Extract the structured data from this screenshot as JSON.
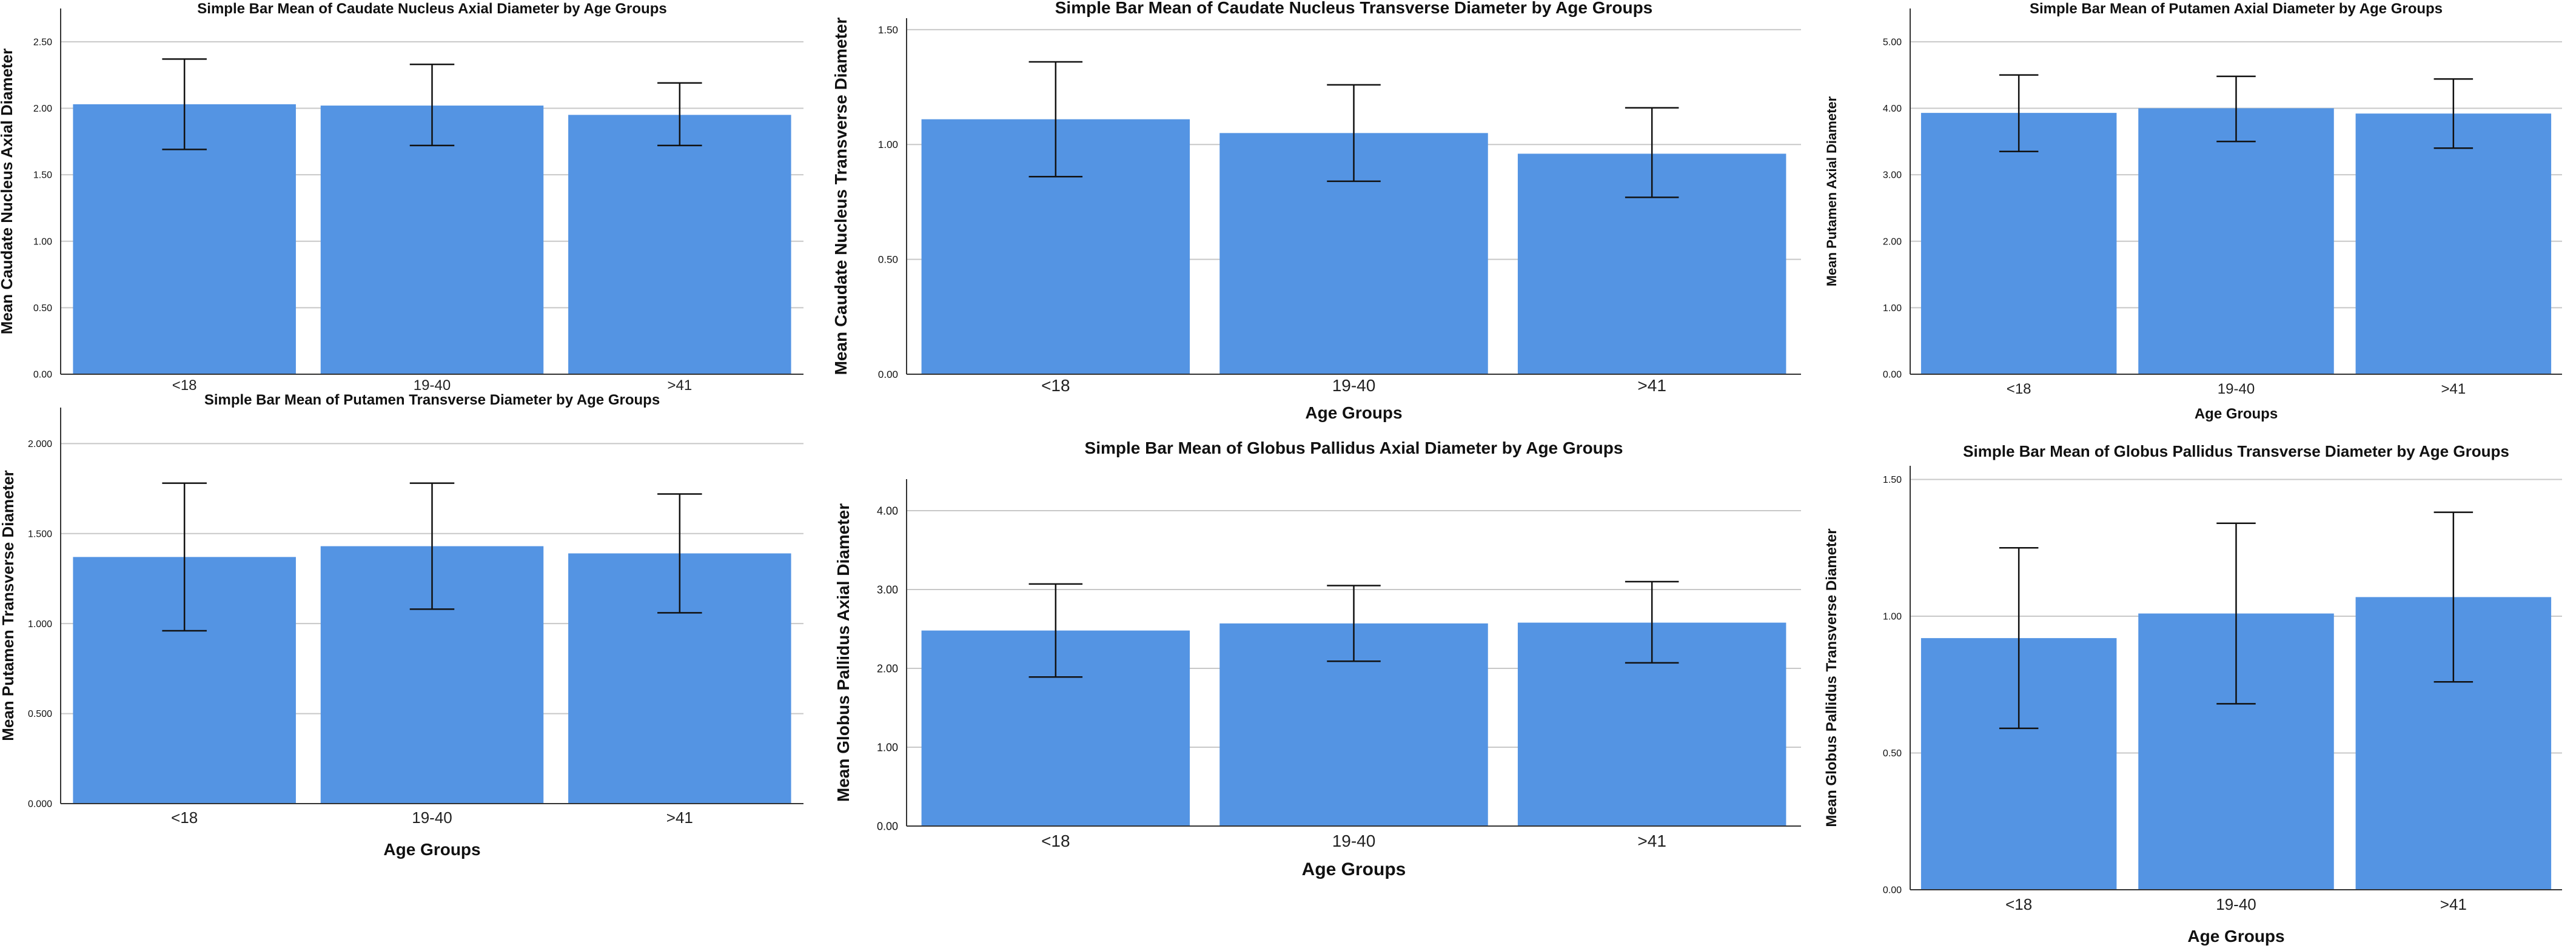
{
  "chart_data": [
    {
      "type": "bar",
      "title": "Simple Bar Mean of Caudate Nucleus Axial Diameter by Age Groups",
      "xlabel": "",
      "ylabel": "Mean Caudate Nucleus Axial Diameter",
      "categories": [
        "<18",
        "19-40",
        ">41"
      ],
      "values": [
        2.03,
        2.02,
        1.95
      ],
      "error_low": [
        1.69,
        1.72,
        1.72
      ],
      "error_high": [
        2.37,
        2.33,
        2.19
      ],
      "ylim": [
        0,
        2.75
      ],
      "yticks": [
        "0.00",
        "0.50",
        "1.00",
        "1.50",
        "2.00",
        "2.50"
      ],
      "grid": true
    },
    {
      "type": "bar",
      "title": "Simple Bar Mean of Caudate Nucleus Transverse Diameter by Age Groups",
      "xlabel": "Age Groups",
      "ylabel": "Mean Caudate Nucleus Transverse Diameter",
      "categories": [
        "<18",
        "19-40",
        ">41"
      ],
      "values": [
        1.11,
        1.05,
        0.96
      ],
      "error_low": [
        0.86,
        0.84,
        0.77
      ],
      "error_high": [
        1.36,
        1.26,
        1.16
      ],
      "ylim": [
        0,
        1.55
      ],
      "yticks": [
        "0.00",
        "0.50",
        "1.00",
        "1.50"
      ],
      "grid": true
    },
    {
      "type": "bar",
      "title": "Simple Bar Mean of Putamen Axial Diameter by Age Groups",
      "xlabel": "Age Groups",
      "ylabel": "Mean Putamen Axial Diameter",
      "categories": [
        "<18",
        "19-40",
        ">41"
      ],
      "values": [
        3.93,
        4.0,
        3.92
      ],
      "error_low": [
        3.35,
        3.5,
        3.4
      ],
      "error_high": [
        4.5,
        4.48,
        4.44
      ],
      "ylim": [
        0,
        5.5
      ],
      "yticks": [
        "0.00",
        "1.00",
        "2.00",
        "3.00",
        "4.00",
        "5.00"
      ],
      "grid": true
    },
    {
      "type": "bar",
      "title": "Simple Bar Mean of Putamen Transverse Diameter by Age Groups",
      "xlabel": "Age Groups",
      "ylabel": "Mean Putamen Transverse Diameter",
      "categories": [
        "<18",
        "19-40",
        ">41"
      ],
      "values": [
        1.37,
        1.43,
        1.39
      ],
      "error_low": [
        0.96,
        1.08,
        1.06
      ],
      "error_high": [
        1.78,
        1.78,
        1.72
      ],
      "ylim": [
        0,
        2.2
      ],
      "yticks": [
        "0.000",
        "0.500",
        "1.000",
        "1.500",
        "2.000"
      ],
      "grid": true
    },
    {
      "type": "bar",
      "title": "Simple Bar Mean of Globus Pallidus Axial Diameter by Age Groups",
      "xlabel": "Age Groups",
      "ylabel": "Mean Globus Pallidus Axial Diameter",
      "categories": [
        "<18",
        "19-40",
        ">41"
      ],
      "values": [
        2.48,
        2.57,
        2.58
      ],
      "error_low": [
        1.89,
        2.09,
        2.07
      ],
      "error_high": [
        3.07,
        3.05,
        3.1
      ],
      "ylim": [
        0,
        4.4
      ],
      "yticks": [
        "0.00",
        "1.00",
        "2.00",
        "3.00",
        "4.00"
      ],
      "grid": true
    },
    {
      "type": "bar",
      "title": "Simple Bar Mean of Globus Pallidus Transverse Diameter by Age Groups",
      "xlabel": "Age Groups",
      "ylabel": "Mean Globus Pallidus Transverse Diameter",
      "categories": [
        "<18",
        "19-40",
        ">41"
      ],
      "values": [
        0.92,
        1.01,
        1.07
      ],
      "error_low": [
        0.59,
        0.68,
        0.76
      ],
      "error_high": [
        1.25,
        1.34,
        1.38
      ],
      "ylim": [
        0,
        1.55
      ],
      "yticks": [
        "0.00",
        "0.50",
        "1.00",
        "1.50"
      ],
      "grid": true
    }
  ],
  "style": {
    "bar_color": "#5494e3",
    "grid_color": "#c8c8c8",
    "axis_color": "#333333",
    "error_bar_color": "#111111",
    "background": "#ffffff"
  }
}
